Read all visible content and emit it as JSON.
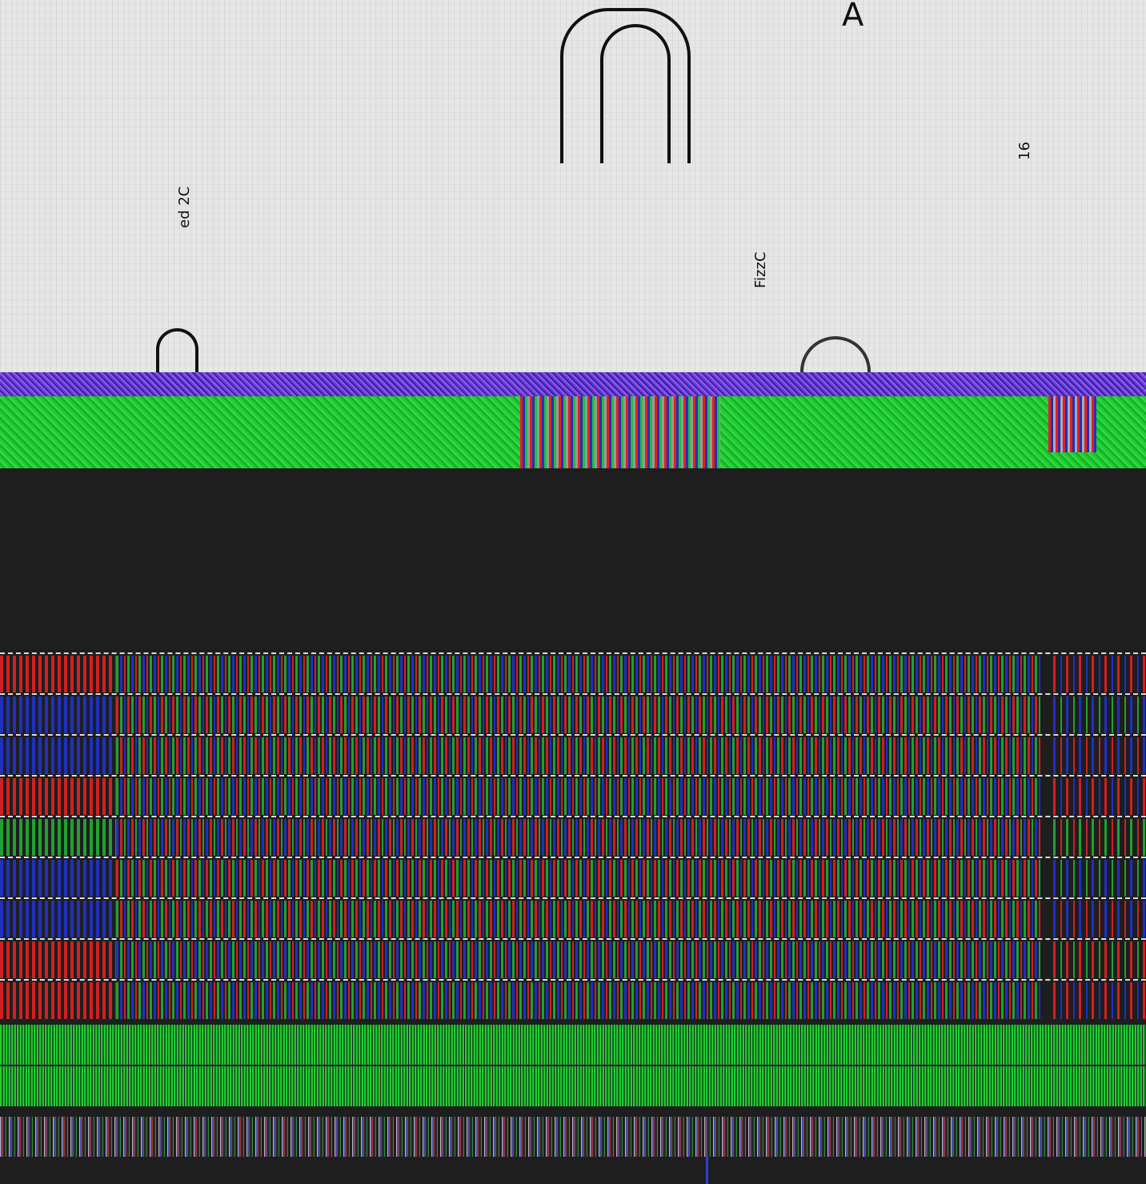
{
  "canvas": {
    "background": "#1e1e1e",
    "top_panel_color": "#e6e6e6",
    "violet_band_color": "#6a3bd6",
    "green_band_color": "#22cc33"
  },
  "top_labels": {
    "a": "A",
    "ed2c": "ed 2C",
    "fizz": "FizzC",
    "n16": "16"
  },
  "grid": {
    "row_patterns": [
      [
        "#d02020",
        "#20a030",
        "#2030c0"
      ],
      [
        "#2030c0",
        "#d02020",
        "#20a030"
      ],
      [
        "#2030c0",
        "#20a030",
        "#d02020"
      ],
      [
        "#d02020",
        "#20a030",
        "#2030c0"
      ],
      [
        "#20a030",
        "#2030c0",
        "#d02020"
      ],
      [
        "#2030c0",
        "#d02020",
        "#20a030"
      ],
      [
        "#2030c0",
        "#20a030",
        "#d02020"
      ],
      [
        "#d02020",
        "#2030c0",
        "#20a030"
      ],
      [
        "#d02020",
        "#20a030",
        "#2030c0"
      ]
    ]
  }
}
